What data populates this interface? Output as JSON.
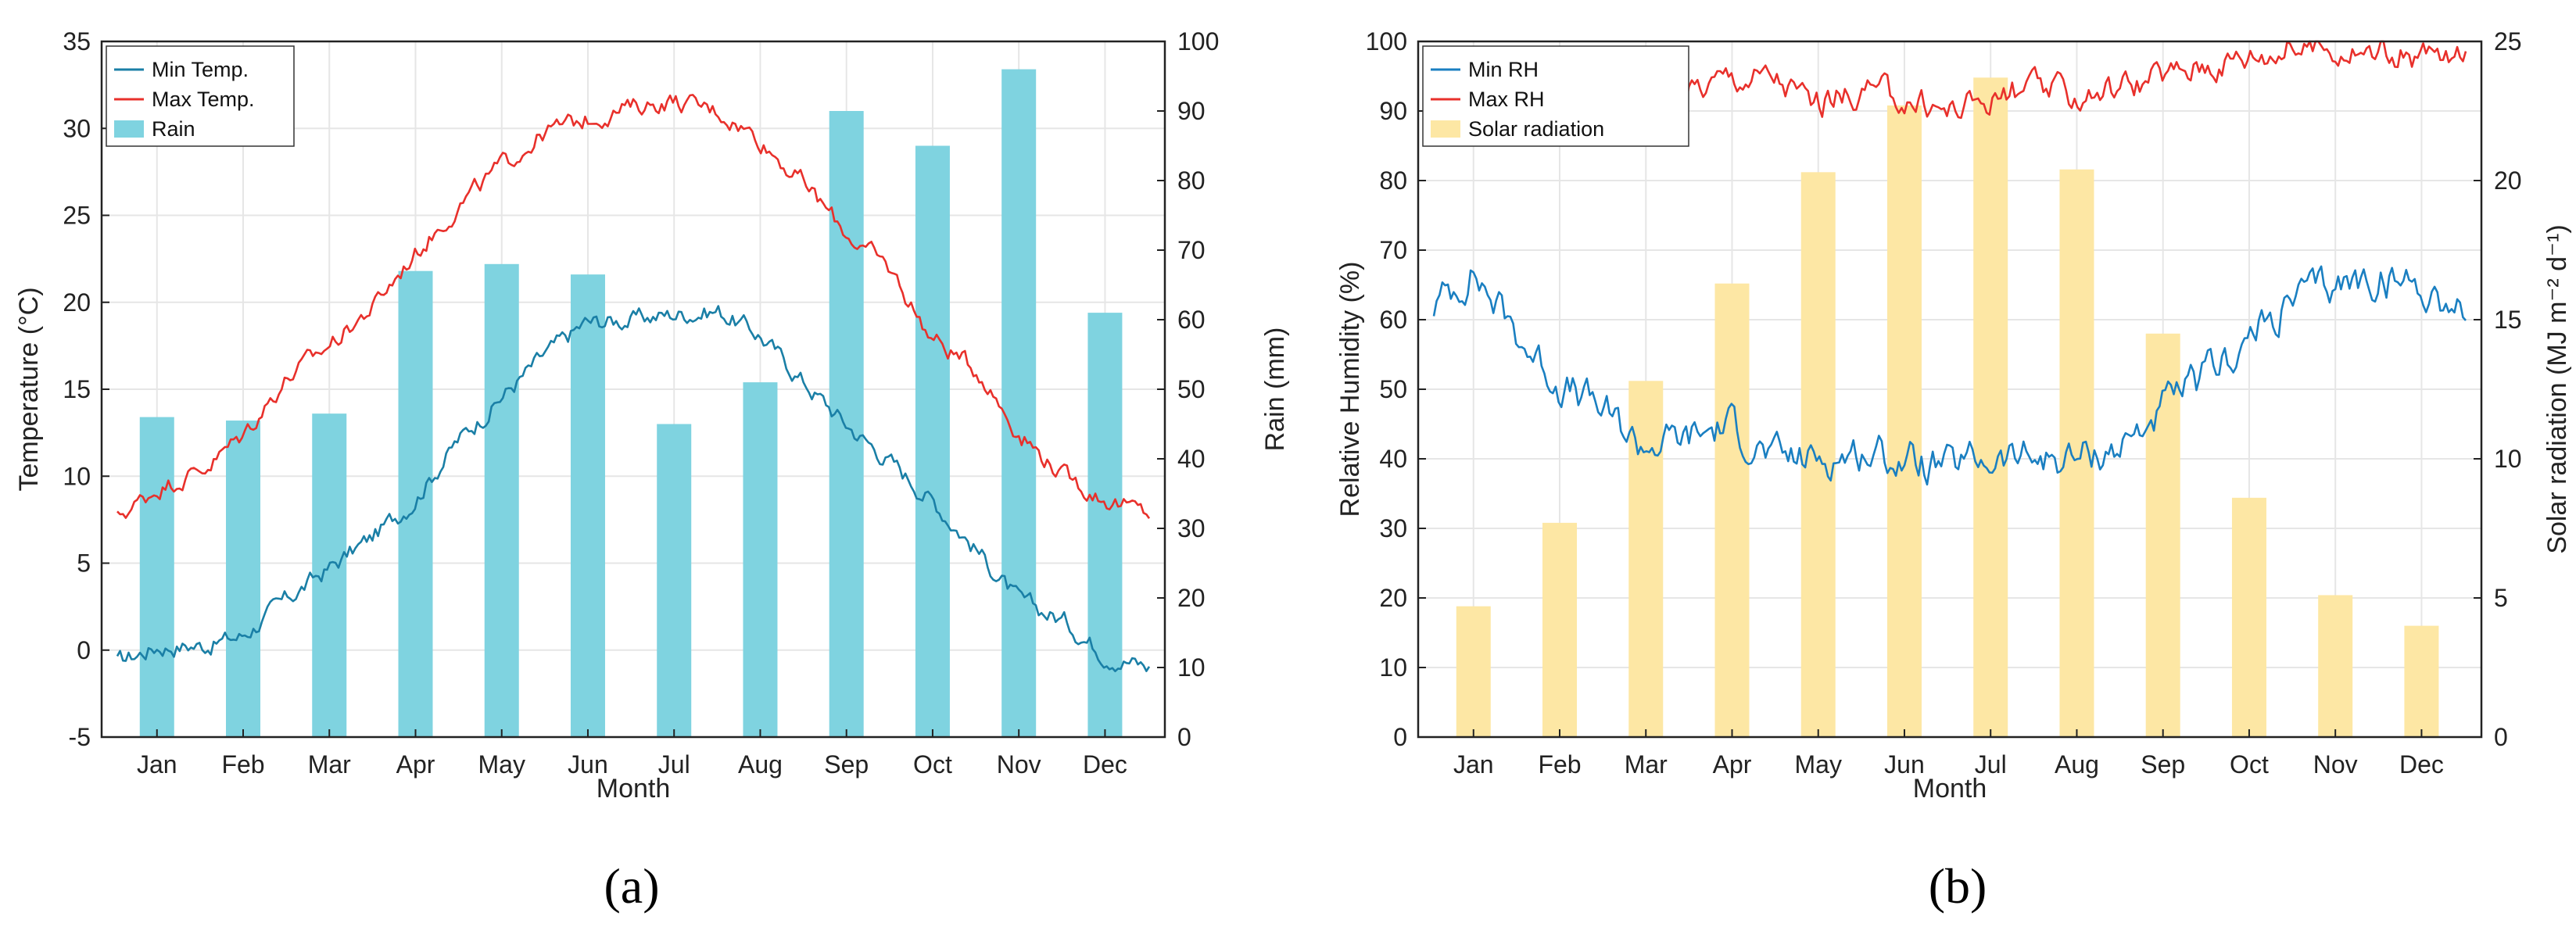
{
  "chart_data": [
    {
      "type": "bar+line",
      "caption": "(a)",
      "xlabel": "Month",
      "ylabel_left": "Temperature (°C)",
      "ylabel_right": "Rain (mm)",
      "ylim_left": [
        -5,
        35
      ],
      "ylim_right": [
        0,
        100
      ],
      "yticks_left": [
        "-5",
        "0",
        "5",
        "10",
        "15",
        "20",
        "25",
        "30",
        "35"
      ],
      "yticks_right": [
        "0",
        "10",
        "20",
        "30",
        "40",
        "50",
        "60",
        "70",
        "80",
        "90",
        "100"
      ],
      "months": [
        "Jan",
        "Feb",
        "Mar",
        "Apr",
        "May",
        "Jun",
        "Jul",
        "Aug",
        "Sep",
        "Oct",
        "Nov",
        "Dec"
      ],
      "grid": true,
      "legend_position": "top-left",
      "bars": {
        "name": "Rain",
        "axis": "right",
        "color": "#7fd3e0",
        "values": [
          46,
          45.5,
          46.5,
          67,
          68,
          66.5,
          45,
          51,
          90,
          85,
          96,
          61
        ]
      },
      "series": [
        {
          "name": "Min Temp.",
          "axis": "left",
          "color": "#1a7fa6",
          "days": [
            1,
            15,
            32,
            45,
            60,
            74,
            91,
            105,
            121,
            135,
            152,
            166,
            182,
            196,
            213,
            227,
            244,
            258,
            274,
            288,
            305,
            319,
            335,
            349,
            365
          ],
          "values": [
            -0.7,
            0.2,
            0.3,
            0.8,
            2.8,
            4.5,
            6.5,
            8.5,
            12.0,
            14.3,
            17.0,
            18.8,
            19.0,
            19.3,
            19.5,
            18.2,
            15.3,
            13.0,
            10.8,
            8.7,
            5.6,
            2.8,
            1.7,
            -0.2,
            -1.0
          ]
        },
        {
          "name": "Max Temp.",
          "axis": "left",
          "color": "#e8302b",
          "days": [
            1,
            15,
            32,
            45,
            60,
            74,
            91,
            105,
            121,
            135,
            152,
            166,
            182,
            196,
            213,
            227,
            244,
            258,
            274,
            288,
            305,
            319,
            335,
            349,
            365
          ],
          "values": [
            7.6,
            9.3,
            10.5,
            12.3,
            15.5,
            17.3,
            19.7,
            22.6,
            25.5,
            27.6,
            29.8,
            30.5,
            31.2,
            31.6,
            31.0,
            29.5,
            26.7,
            24.0,
            21.8,
            18.0,
            16.0,
            12.5,
            10.0,
            8.7,
            7.8
          ]
        }
      ]
    },
    {
      "type": "bar+line",
      "caption": "(b)",
      "xlabel": "Month",
      "ylabel_left": "Relative Humidity (%)",
      "ylabel_right": "Solar radiation (MJ m⁻² d⁻¹)",
      "ylim_left": [
        0,
        100
      ],
      "ylim_right": [
        0,
        25
      ],
      "yticks_left": [
        "0",
        "10",
        "20",
        "30",
        "40",
        "50",
        "60",
        "70",
        "80",
        "90",
        "100"
      ],
      "yticks_right": [
        "0",
        "5",
        "10",
        "15",
        "20",
        "25"
      ],
      "months": [
        "Jan",
        "Feb",
        "Mar",
        "Apr",
        "May",
        "Jun",
        "Jul",
        "Aug",
        "Sep",
        "Oct",
        "Nov",
        "Dec"
      ],
      "grid": true,
      "legend_position": "top-left",
      "bars": {
        "name": "Solar radiation",
        "axis": "right",
        "color": "#fde7a4",
        "values": [
          4.7,
          7.7,
          12.8,
          16.3,
          20.3,
          22.7,
          23.7,
          20.4,
          14.5,
          8.6,
          5.1,
          4.0
        ]
      },
      "series": [
        {
          "name": "Min RH",
          "axis": "left",
          "color": "#1a7fc1",
          "days": [
            1,
            15,
            32,
            45,
            60,
            74,
            91,
            105,
            121,
            135,
            152,
            166,
            182,
            196,
            213,
            227,
            244,
            258,
            274,
            288,
            305,
            319,
            335,
            349,
            365
          ],
          "values": [
            62,
            67,
            57,
            51,
            47,
            42,
            43,
            45,
            40,
            40,
            41,
            40,
            38.5,
            40,
            40,
            40,
            42,
            47,
            52,
            57,
            63,
            65,
            66,
            65,
            61
          ]
        },
        {
          "name": "Max RH",
          "axis": "left",
          "color": "#e8302b",
          "days": [
            1,
            15,
            32,
            45,
            60,
            74,
            91,
            105,
            121,
            135,
            152,
            166,
            182,
            196,
            213,
            227,
            244,
            258,
            274,
            288,
            305,
            319,
            335,
            349,
            365
          ],
          "values": [
            91,
            94,
            91,
            93,
            92,
            91,
            93,
            95,
            95,
            91,
            93,
            92,
            90,
            92,
            93,
            92,
            94,
            95,
            97,
            98,
            99,
            99,
            98,
            98,
            97
          ]
        }
      ]
    }
  ]
}
